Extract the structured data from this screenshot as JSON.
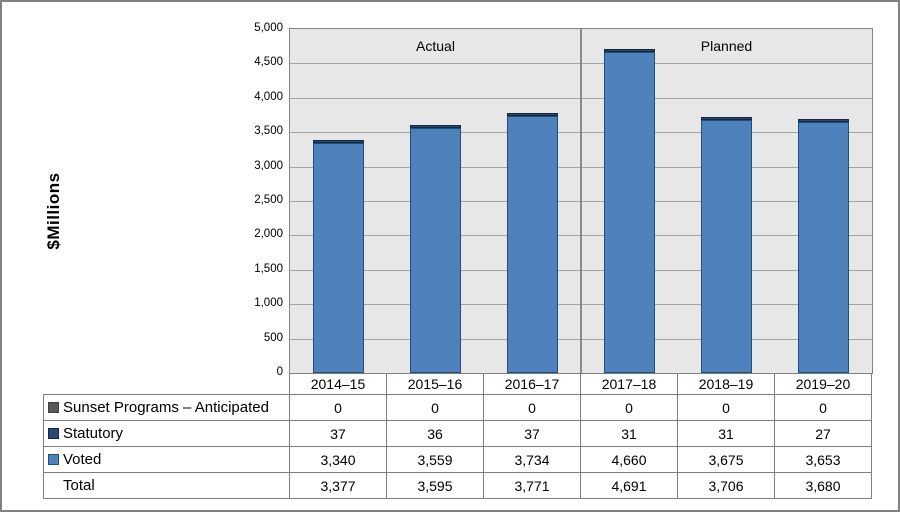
{
  "chart_data": {
    "type": "bar",
    "stacked": true,
    "ylabel": "$Millions",
    "ylim": [
      0,
      5000
    ],
    "ytick_step": 500,
    "ytick_labels": [
      "5,000",
      "4,500",
      "4,000",
      "3,500",
      "3,000",
      "2,500",
      "2,000",
      "1,500",
      "1,000",
      "500",
      "0"
    ],
    "grid": true,
    "plot_bg": "#E7E7E7",
    "grid_color": "#A3A3A3",
    "categories": [
      "2014–15",
      "2015–16",
      "2016–17",
      "2017–18",
      "2018–19",
      "2019–20"
    ],
    "sections": [
      {
        "label": "Actual",
        "from": 0,
        "to": 2
      },
      {
        "label": "Planned",
        "from": 3,
        "to": 5
      }
    ],
    "series": [
      {
        "name": "Sunset Programs – Anticipated",
        "values": [
          0,
          0,
          0,
          0,
          0,
          0
        ],
        "fill": "#595959",
        "border": "#3F3F3F"
      },
      {
        "name": "Statutory",
        "values": [
          37,
          36,
          37,
          31,
          31,
          27
        ],
        "fill": "#2B4A73",
        "border": "#16263B"
      },
      {
        "name": "Voted",
        "values": [
          3340,
          3559,
          3734,
          4660,
          3675,
          3653
        ],
        "fill": "#4F81BD",
        "border": "#1F4E79"
      }
    ],
    "totals": {
      "label": "Total",
      "values": [
        3377,
        3595,
        3771,
        4691,
        3706,
        3680
      ]
    },
    "legend_position": "table-left"
  },
  "table": {
    "col_headers": [
      "2014–15",
      "2015–16",
      "2016–17",
      "2017–18",
      "2018–19",
      "2019–20"
    ],
    "rows": [
      {
        "label": "Sunset Programs – Anticipated",
        "swatch_fill": "#595959",
        "swatch_border": "#3F3F3F",
        "values": [
          "0",
          "0",
          "0",
          "0",
          "0",
          "0"
        ]
      },
      {
        "label": "Statutory",
        "swatch_fill": "#2B4A73",
        "swatch_border": "#16263B",
        "values": [
          "37",
          "36",
          "37",
          "31",
          "31",
          "27"
        ]
      },
      {
        "label": "Voted",
        "swatch_fill": "#4F81BD",
        "swatch_border": "#1F4E79",
        "values": [
          "3,340",
          "3,559",
          "3,734",
          "4,660",
          "3,675",
          "3,653"
        ]
      },
      {
        "label": "Total",
        "values": [
          "3,377",
          "3,595",
          "3,771",
          "4,691",
          "3,706",
          "3,680"
        ]
      }
    ]
  }
}
